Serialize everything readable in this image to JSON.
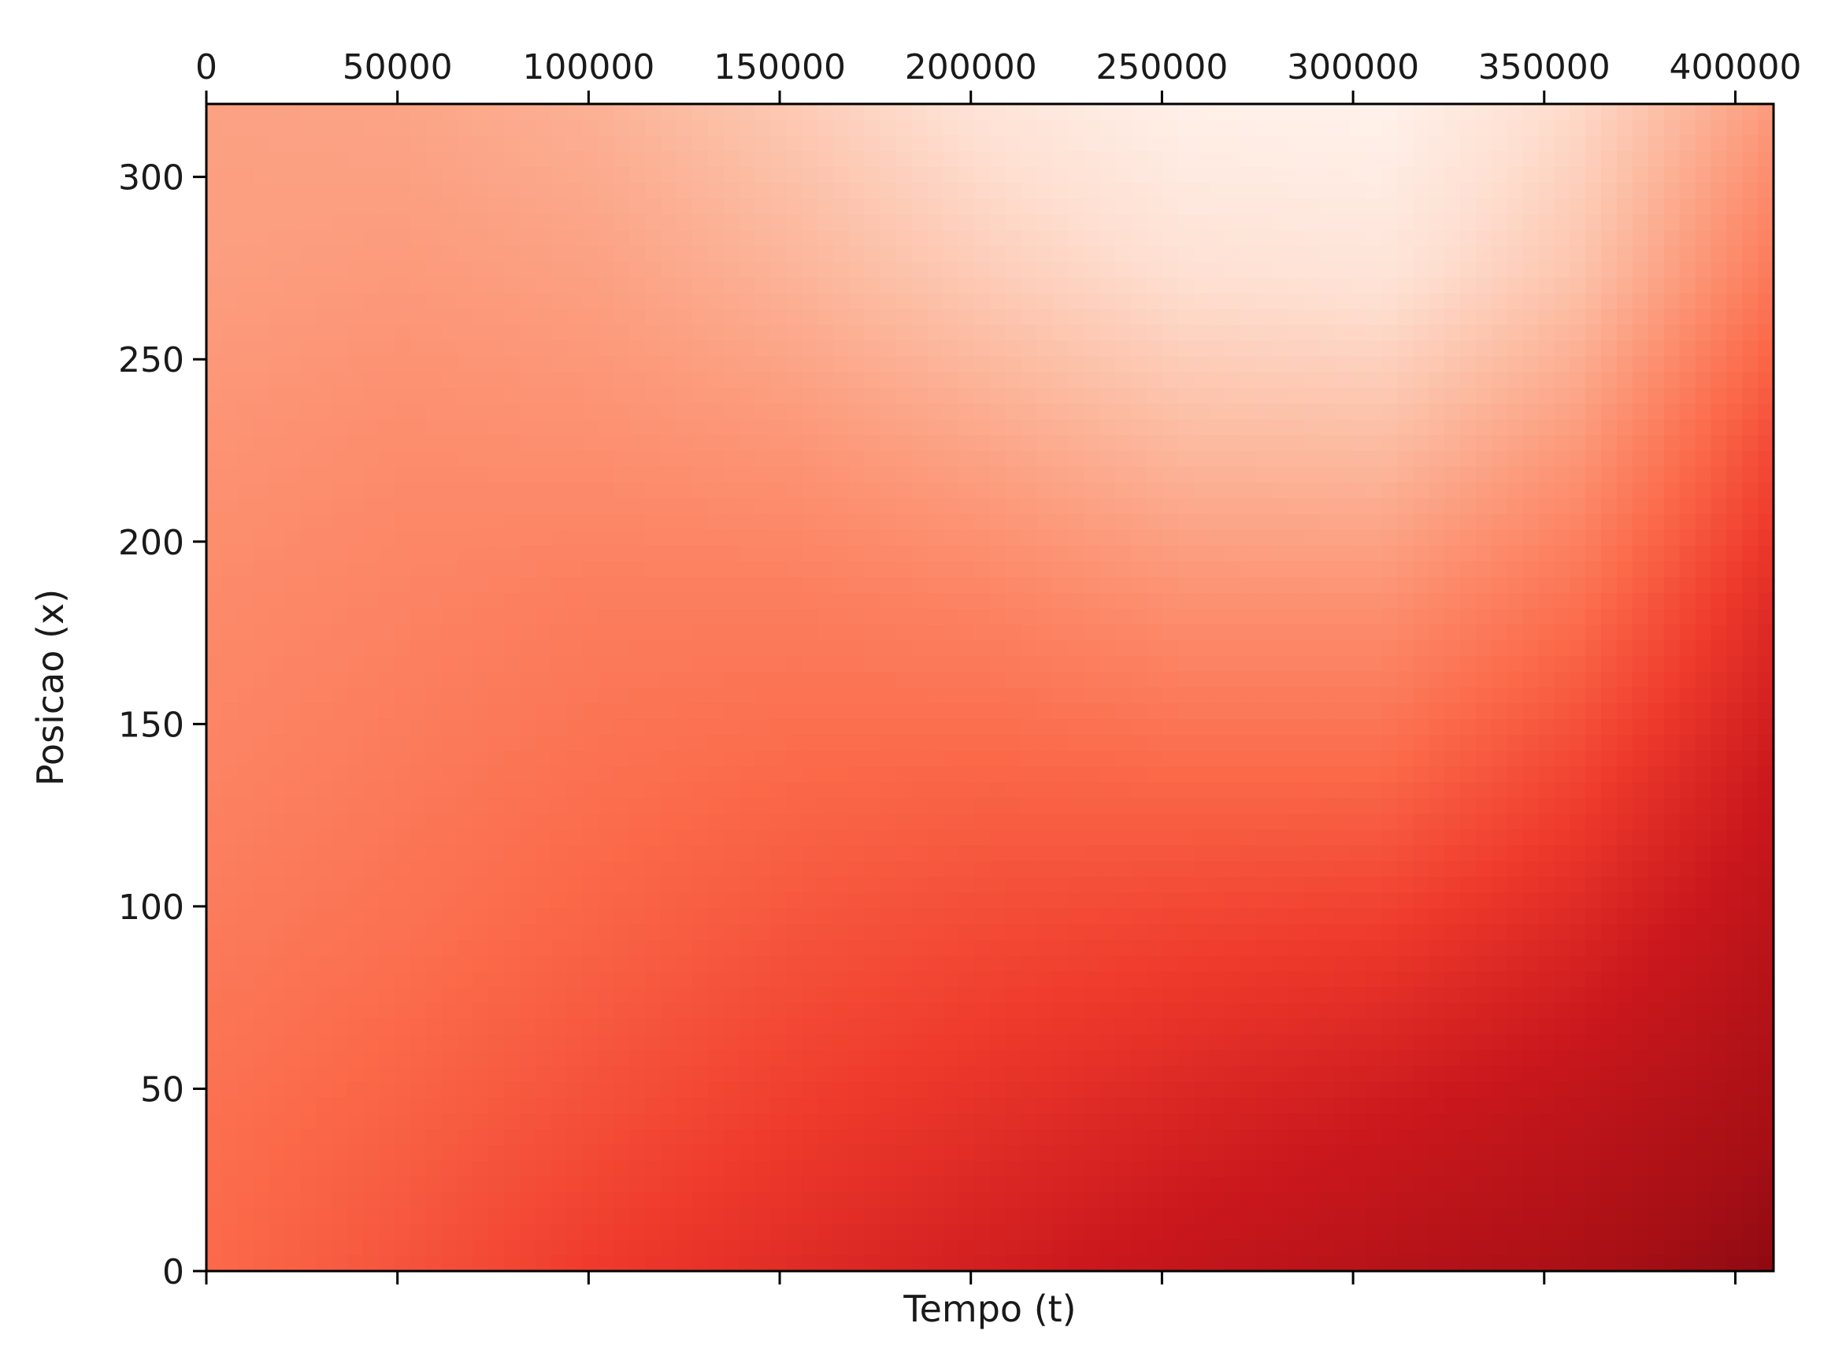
{
  "chart_data": {
    "type": "heatmap",
    "title": "",
    "xlabel": "Tempo (t)",
    "ylabel": "Posicao (x)",
    "x_tick_position": "top",
    "xlim": [
      0,
      410000
    ],
    "ylim": [
      0,
      320
    ],
    "x_ticks": [
      0,
      50000,
      100000,
      150000,
      200000,
      250000,
      300000,
      350000,
      400000
    ],
    "x_tick_labels": [
      "0",
      "50000",
      "100000",
      "150000",
      "200000",
      "250000",
      "300000",
      "350000",
      "400000"
    ],
    "y_ticks": [
      0,
      50,
      100,
      150,
      200,
      250,
      300
    ],
    "y_tick_labels": [
      "0",
      "50",
      "100",
      "150",
      "200",
      "250",
      "300"
    ],
    "colormap": "Reds",
    "colormap_stops": [
      "#fff5f0",
      "#fee0d2",
      "#fcbba1",
      "#fc9272",
      "#fb6a4a",
      "#ef3b2c",
      "#cb181d",
      "#a50f15",
      "#67000d"
    ],
    "grid": false,
    "colorbar": false,
    "intensity_grid_description": "normalized intensity 0-1, rows from x=0 (bottom) to x=320 (top), columns from t=0 to t=410000",
    "intensity_grid": [
      [
        0.5,
        0.56,
        0.63,
        0.68,
        0.73,
        0.78,
        0.82,
        0.86,
        0.92
      ],
      [
        0.48,
        0.52,
        0.57,
        0.62,
        0.66,
        0.7,
        0.74,
        0.79,
        0.86
      ],
      [
        0.45,
        0.48,
        0.52,
        0.56,
        0.59,
        0.61,
        0.63,
        0.7,
        0.81
      ],
      [
        0.42,
        0.45,
        0.48,
        0.5,
        0.51,
        0.5,
        0.5,
        0.6,
        0.75
      ],
      [
        0.4,
        0.42,
        0.44,
        0.44,
        0.42,
        0.38,
        0.38,
        0.48,
        0.68
      ],
      [
        0.37,
        0.39,
        0.38,
        0.36,
        0.31,
        0.25,
        0.24,
        0.35,
        0.58
      ],
      [
        0.34,
        0.35,
        0.33,
        0.27,
        0.19,
        0.12,
        0.1,
        0.22,
        0.45
      ],
      [
        0.33,
        0.32,
        0.28,
        0.2,
        0.1,
        0.03,
        0.02,
        0.15,
        0.35
      ]
    ]
  }
}
